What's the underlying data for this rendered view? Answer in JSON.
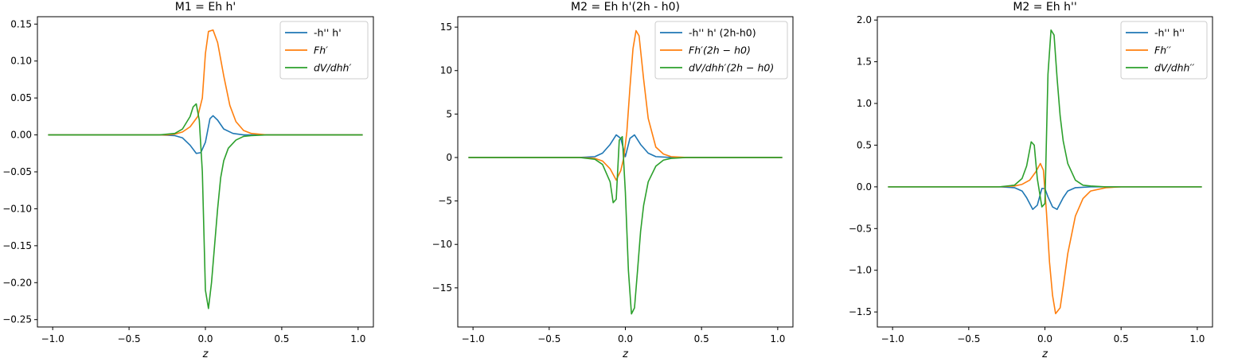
{
  "colors": {
    "s0": "#1f77b4",
    "s1": "#ff7f0e",
    "s2": "#2ca02c"
  },
  "chart_data": [
    {
      "type": "line",
      "title": "M1 = Eh h'",
      "xlabel": "z",
      "ylabel": "",
      "xlim": [
        -1.1,
        1.1
      ],
      "ylim": [
        -0.26,
        0.16
      ],
      "xticks": [
        -1.0,
        -0.5,
        0.0,
        0.5,
        1.0
      ],
      "xtick_labels": [
        "−1.0",
        "−0.5",
        "0.0",
        "0.5",
        "1.0"
      ],
      "yticks": [
        0.15,
        0.1,
        0.05,
        0.0,
        -0.05,
        -0.1,
        -0.15,
        -0.2,
        -0.25
      ],
      "ytick_labels": [
        "0.15",
        "0.10",
        "0.05",
        "0.00",
        "−0.05",
        "−0.10",
        "−0.15",
        "−0.20",
        "−0.25"
      ],
      "legend_position": "top-right",
      "series": [
        {
          "name": "-h'' h'",
          "italic": false,
          "x": [
            -1.03,
            -0.3,
            -0.2,
            -0.15,
            -0.1,
            -0.06,
            -0.03,
            0.0,
            0.03,
            0.05,
            0.08,
            0.12,
            0.18,
            0.25,
            0.35,
            1.03
          ],
          "y": [
            0,
            0,
            -0.001,
            -0.004,
            -0.014,
            -0.025,
            -0.024,
            -0.01,
            0.022,
            0.026,
            0.02,
            0.008,
            0.002,
            0.0,
            0,
            0
          ]
        },
        {
          "name": "Fh′",
          "italic": true,
          "x": [
            -1.03,
            -0.25,
            -0.2,
            -0.15,
            -0.1,
            -0.05,
            -0.02,
            0.0,
            0.02,
            0.05,
            0.08,
            0.12,
            0.16,
            0.2,
            0.25,
            0.3,
            0.4,
            1.03
          ],
          "y": [
            0,
            0,
            0.001,
            0.004,
            0.011,
            0.025,
            0.05,
            0.11,
            0.14,
            0.142,
            0.125,
            0.08,
            0.04,
            0.018,
            0.006,
            0.002,
            0,
            0
          ]
        },
        {
          "name": "dV/dhh′",
          "italic": true,
          "x": [
            -1.03,
            -0.3,
            -0.2,
            -0.15,
            -0.1,
            -0.08,
            -0.06,
            -0.04,
            -0.02,
            0.0,
            0.02,
            0.04,
            0.06,
            0.08,
            0.1,
            0.12,
            0.15,
            0.2,
            0.25,
            0.3,
            0.4,
            1.03
          ],
          "y": [
            0,
            0,
            0.002,
            0.008,
            0.025,
            0.038,
            0.042,
            0.02,
            -0.05,
            -0.21,
            -0.235,
            -0.2,
            -0.15,
            -0.1,
            -0.058,
            -0.035,
            -0.018,
            -0.007,
            -0.002,
            -0.001,
            0,
            0
          ]
        }
      ]
    },
    {
      "type": "line",
      "title": "M2 = Eh h'(2h - h0)",
      "xlabel": "z",
      "ylabel": "",
      "xlim": [
        -1.1,
        1.1
      ],
      "ylim": [
        -19.5,
        16.2
      ],
      "xticks": [
        -1.0,
        -0.5,
        0.0,
        0.5,
        1.0
      ],
      "xtick_labels": [
        "−1.0",
        "−0.5",
        "0.0",
        "0.5",
        "1.0"
      ],
      "yticks": [
        15,
        10,
        5,
        0,
        -5,
        -10,
        -15
      ],
      "ytick_labels": [
        "15",
        "10",
        "5",
        "0",
        "−5",
        "−10",
        "−15"
      ],
      "legend_position": "top-right",
      "series": [
        {
          "name": "-h'' h' (2h-h0)",
          "italic": false,
          "x": [
            -1.03,
            -0.3,
            -0.2,
            -0.15,
            -0.1,
            -0.06,
            -0.03,
            0.0,
            0.03,
            0.06,
            0.1,
            0.15,
            0.2,
            0.3,
            1.03
          ],
          "y": [
            0,
            0,
            0.1,
            0.5,
            1.5,
            2.6,
            2.2,
            0.1,
            2.2,
            2.6,
            1.5,
            0.5,
            0.1,
            0,
            0
          ]
        },
        {
          "name": "Fh′(2h − h0)",
          "italic": true,
          "x": [
            -1.03,
            -0.3,
            -0.2,
            -0.15,
            -0.1,
            -0.06,
            -0.03,
            -0.01,
            0.01,
            0.03,
            0.05,
            0.07,
            0.09,
            0.12,
            0.15,
            0.2,
            0.25,
            0.3,
            0.4,
            1.03
          ],
          "y": [
            0,
            0,
            -0.1,
            -0.4,
            -1.3,
            -2.6,
            -1.5,
            0.0,
            3.0,
            8.0,
            12.5,
            14.6,
            14.0,
            9.0,
            4.5,
            1.2,
            0.4,
            0.1,
            0,
            0
          ]
        },
        {
          "name": "dV/dhh′(2h − h0)",
          "italic": true,
          "x": [
            -1.03,
            -0.3,
            -0.2,
            -0.15,
            -0.1,
            -0.08,
            -0.06,
            -0.04,
            -0.02,
            0.0,
            0.02,
            0.04,
            0.06,
            0.08,
            0.1,
            0.12,
            0.15,
            0.2,
            0.25,
            0.3,
            0.4,
            1.03
          ],
          "y": [
            0,
            0,
            -0.2,
            -0.8,
            -2.8,
            -5.2,
            -4.8,
            2.0,
            2.4,
            -4.0,
            -13.0,
            -18.0,
            -17.3,
            -13.0,
            -8.5,
            -5.5,
            -2.8,
            -1.0,
            -0.3,
            -0.1,
            0,
            0
          ]
        }
      ]
    },
    {
      "type": "line",
      "title": "M2 = Eh h''",
      "xlabel": "z",
      "ylabel": "",
      "xlim": [
        -1.1,
        1.1
      ],
      "ylim": [
        -1.68,
        2.04
      ],
      "xticks": [
        -1.0,
        -0.5,
        0.0,
        0.5,
        1.0
      ],
      "xtick_labels": [
        "−1.0",
        "−0.5",
        "0.0",
        "0.5",
        "1.0"
      ],
      "yticks": [
        2.0,
        1.5,
        1.0,
        0.5,
        0.0,
        -0.5,
        -1.0,
        -1.5
      ],
      "ytick_labels": [
        "2.0",
        "1.5",
        "1.0",
        "0.5",
        "0.0",
        "−0.5",
        "−1.0",
        "−1.5"
      ],
      "legend_position": "top-right",
      "series": [
        {
          "name": "-h'' h''",
          "italic": false,
          "x": [
            -1.03,
            -0.3,
            -0.2,
            -0.15,
            -0.12,
            -0.08,
            -0.05,
            -0.02,
            0.0,
            0.02,
            0.05,
            0.08,
            0.12,
            0.15,
            0.2,
            0.3,
            1.03
          ],
          "y": [
            0,
            0,
            -0.01,
            -0.05,
            -0.13,
            -0.27,
            -0.22,
            -0.02,
            -0.02,
            -0.12,
            -0.24,
            -0.27,
            -0.13,
            -0.05,
            -0.01,
            0,
            0
          ]
        },
        {
          "name": "Fh′′",
          "italic": true,
          "x": [
            -1.03,
            -0.3,
            -0.2,
            -0.15,
            -0.1,
            -0.06,
            -0.03,
            -0.01,
            0.01,
            0.03,
            0.05,
            0.07,
            0.1,
            0.12,
            0.15,
            0.2,
            0.25,
            0.3,
            0.4,
            0.5,
            1.03
          ],
          "y": [
            0,
            0,
            0.01,
            0.03,
            0.08,
            0.18,
            0.28,
            0.2,
            -0.3,
            -0.9,
            -1.3,
            -1.52,
            -1.45,
            -1.2,
            -0.8,
            -0.35,
            -0.14,
            -0.05,
            -0.01,
            0,
            0
          ]
        },
        {
          "name": "dV/dhh′′",
          "italic": true,
          "x": [
            -1.03,
            -0.3,
            -0.2,
            -0.15,
            -0.12,
            -0.09,
            -0.07,
            -0.05,
            -0.02,
            0.0,
            0.02,
            0.04,
            0.06,
            0.08,
            0.1,
            0.12,
            0.15,
            0.2,
            0.25,
            0.3,
            0.4,
            1.03
          ],
          "y": [
            0,
            0,
            0.02,
            0.1,
            0.25,
            0.54,
            0.5,
            0.1,
            -0.24,
            -0.2,
            1.35,
            1.88,
            1.82,
            1.3,
            0.85,
            0.55,
            0.28,
            0.08,
            0.02,
            0.01,
            0,
            0
          ]
        }
      ]
    }
  ]
}
